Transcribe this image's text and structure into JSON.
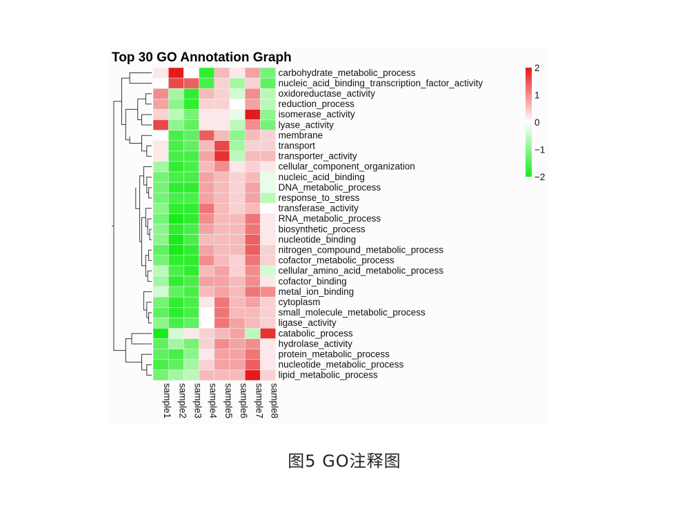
{
  "caption": "图5   GO注释图",
  "chart_data": {
    "type": "heatmap",
    "title": "Top 30 GO Annotation Graph",
    "columns": [
      "sample1",
      "sample2",
      "sample3",
      "sample4",
      "sample5",
      "sample6",
      "sample7",
      "sample8"
    ],
    "rows": [
      "carbohydrate_metabolic_process",
      "nucleic_acid_binding_transcription_factor_activity",
      "oxidoreductase_activity",
      "reduction_process",
      "isomerase_activity",
      "lyase_activity",
      "membrane",
      "transport",
      "transporter_activity",
      "cellular_component_organization",
      "nucleic_acid_binding",
      "DNA_metabolic_process",
      "response_to_stress",
      "transferase_activity",
      "RNA_metabolic_process",
      "biosynthetic_process",
      "nucleotide_binding",
      "nitrogen_compound_metabolic_process",
      "cofactor_metabolic_process",
      "cellular_amino_acid_metabolic_process",
      "cofactor_binding",
      "metal_ion_binding",
      "cytoplasm",
      "small_molecule_metabolic_process",
      "ligase_activity",
      "catabolic_process",
      "hydrolase_activity",
      "protein_metabolic_process",
      "nucleotide_metabolic_process",
      "lipid_metabolic_process"
    ],
    "values": [
      [
        0.2,
        2.0,
        0.0,
        -1.8,
        0.6,
        0.2,
        0.8,
        -1.2
      ],
      [
        0.0,
        1.6,
        1.4,
        -1.6,
        0.4,
        -0.8,
        0.4,
        -1.4
      ],
      [
        1.0,
        -0.8,
        -1.8,
        0.6,
        0.4,
        -0.4,
        1.0,
        -0.6
      ],
      [
        0.8,
        -1.0,
        -1.8,
        0.4,
        0.4,
        0.0,
        0.8,
        -0.6
      ],
      [
        0.4,
        -0.6,
        -1.2,
        0.2,
        0.2,
        -0.2,
        2.0,
        -1.0
      ],
      [
        1.6,
        -1.0,
        -1.4,
        0.2,
        0.2,
        -0.6,
        1.0,
        -1.2
      ],
      [
        0.0,
        -1.6,
        -1.4,
        1.4,
        0.6,
        -1.0,
        0.6,
        0.4
      ],
      [
        0.2,
        -1.6,
        -1.4,
        0.6,
        1.6,
        -0.8,
        0.4,
        0.4
      ],
      [
        0.2,
        -1.6,
        -1.6,
        0.8,
        1.8,
        -0.6,
        0.6,
        0.6
      ],
      [
        -0.8,
        -1.8,
        -1.6,
        0.6,
        1.0,
        0.2,
        0.4,
        0.2
      ],
      [
        -1.2,
        -1.6,
        -1.6,
        0.8,
        0.6,
        0.4,
        0.6,
        -0.2
      ],
      [
        -1.2,
        -1.8,
        -1.8,
        0.8,
        0.6,
        0.4,
        0.8,
        -0.2
      ],
      [
        -1.2,
        -1.6,
        -1.6,
        0.8,
        0.6,
        0.4,
        0.8,
        -0.6
      ],
      [
        -1.0,
        -1.8,
        -1.8,
        1.2,
        0.6,
        0.4,
        0.6,
        0.0
      ],
      [
        -1.2,
        -2.0,
        -1.8,
        1.0,
        0.6,
        0.6,
        1.2,
        0.2
      ],
      [
        -1.0,
        -1.8,
        -1.6,
        0.8,
        0.6,
        0.6,
        1.2,
        0.2
      ],
      [
        -1.0,
        -2.0,
        -1.6,
        0.6,
        0.6,
        0.6,
        1.4,
        0.2
      ],
      [
        -1.4,
        -2.0,
        -1.8,
        0.8,
        0.6,
        0.6,
        1.4,
        0.4
      ],
      [
        -1.2,
        -1.8,
        -1.8,
        1.0,
        0.6,
        0.4,
        1.2,
        0.4
      ],
      [
        -0.6,
        -1.6,
        -1.8,
        0.6,
        0.8,
        0.4,
        1.0,
        -0.4
      ],
      [
        -0.8,
        -1.8,
        -1.6,
        0.8,
        0.8,
        0.6,
        1.0,
        0.2
      ],
      [
        -0.4,
        -1.4,
        -1.6,
        0.6,
        0.8,
        0.6,
        1.2,
        1.0
      ],
      [
        -1.2,
        -1.8,
        -1.6,
        0.2,
        1.2,
        0.6,
        0.8,
        0.4
      ],
      [
        -1.4,
        -1.8,
        -1.6,
        0.0,
        1.2,
        0.6,
        0.6,
        0.4
      ],
      [
        -1.0,
        -1.6,
        -1.4,
        0.0,
        1.2,
        0.8,
        0.6,
        0.4
      ],
      [
        -2.0,
        -0.4,
        0.2,
        0.4,
        0.6,
        0.8,
        -0.6,
        1.8
      ],
      [
        -1.4,
        -0.8,
        -1.2,
        0.4,
        1.0,
        0.8,
        1.0,
        0.2
      ],
      [
        -1.4,
        -1.6,
        -1.0,
        0.2,
        0.8,
        0.8,
        1.2,
        0.2
      ],
      [
        -1.6,
        -1.4,
        -0.8,
        0.4,
        0.8,
        0.8,
        1.4,
        0.2
      ],
      [
        -1.2,
        -0.8,
        -0.6,
        0.6,
        0.6,
        0.6,
        2.0,
        0.4
      ]
    ],
    "color_scale": {
      "ticks": [
        2,
        1,
        0,
        -1,
        -2
      ],
      "tick_labels": [
        "2",
        "1",
        "0",
        "−1",
        "−2"
      ],
      "range": [
        -2,
        2
      ],
      "high_color": "#e41a1c",
      "mid_color": "#ffffff",
      "low_color": "#1aeb1a"
    },
    "row_dendrogram": true,
    "column_labels_rotated": true
  }
}
